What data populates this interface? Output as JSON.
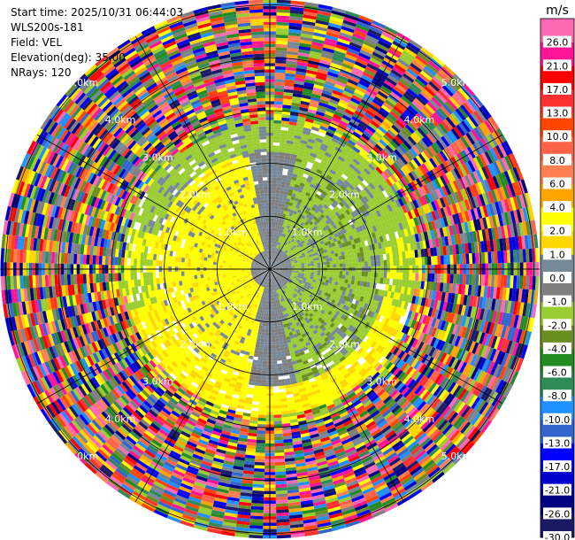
{
  "info": {
    "start_time": "Start time: 2025/10/31 06:44:03",
    "site": "WLS200s-181",
    "field": "Field: VEL",
    "elevation": "Elevation(deg): 35.00",
    "nrays": "NRays: 120"
  },
  "chart_data": {
    "type": "heatmap",
    "projection": "polar-ppi",
    "field": "VEL",
    "units": "m/s",
    "n_rays": 120,
    "elevation_deg": 35.0,
    "range_rings_km": [
      1.0,
      2.0,
      3.0,
      4.0,
      5.0
    ],
    "ring_labels": [
      "1.0km",
      "2.0km",
      "3.0km",
      "4.0km",
      "5.0km"
    ],
    "radial_lines_deg": [
      0,
      30,
      60,
      90,
      120,
      150,
      180,
      210,
      240,
      270,
      300,
      330
    ],
    "colorbar": {
      "label": "m/s",
      "levels": [
        -30.0,
        -26.0,
        -21.0,
        -17.0,
        -13.0,
        -10.0,
        -8.0,
        -6.0,
        -4.0,
        -2.0,
        -1.0,
        0.0,
        1.0,
        2.0,
        4.0,
        6.0,
        8.0,
        10.0,
        13.0,
        17.0,
        21.0,
        26.0
      ],
      "tick_labels": [
        "-30.0",
        "-26.0",
        "-21.0",
        "-17.0",
        "-13.0",
        "-10.0",
        "-8.0",
        "-6.0",
        "-4.0",
        "-2.0",
        "-1.0",
        "0.0",
        "1.0",
        "2.0",
        "4.0",
        "6.0",
        "8.0",
        "10.0",
        "13.0",
        "17.0",
        "21.0",
        "26.0"
      ],
      "colors": [
        "#1a1a66",
        "#000080",
        "#0000cd",
        "#0000ff",
        "#3366cc",
        "#1e90ff",
        "#2e8b57",
        "#228b22",
        "#6b8e23",
        "#9acd32",
        "#7f7f7f",
        "#778899",
        "#ffd700",
        "#ffff00",
        "#ffa500",
        "#ff7f50",
        "#ff6347",
        "#ff4500",
        "#ff3030",
        "#ff0000",
        "#ff1493",
        "#ff69b4"
      ]
    },
    "pattern": {
      "inner_zone_km": 1.0,
      "mid_zone_km": 2.7,
      "outer_noise_km": 5.0,
      "description_codes": [
        "grey-core",
        "green-yellow-mid",
        "noise-outer"
      ]
    }
  }
}
